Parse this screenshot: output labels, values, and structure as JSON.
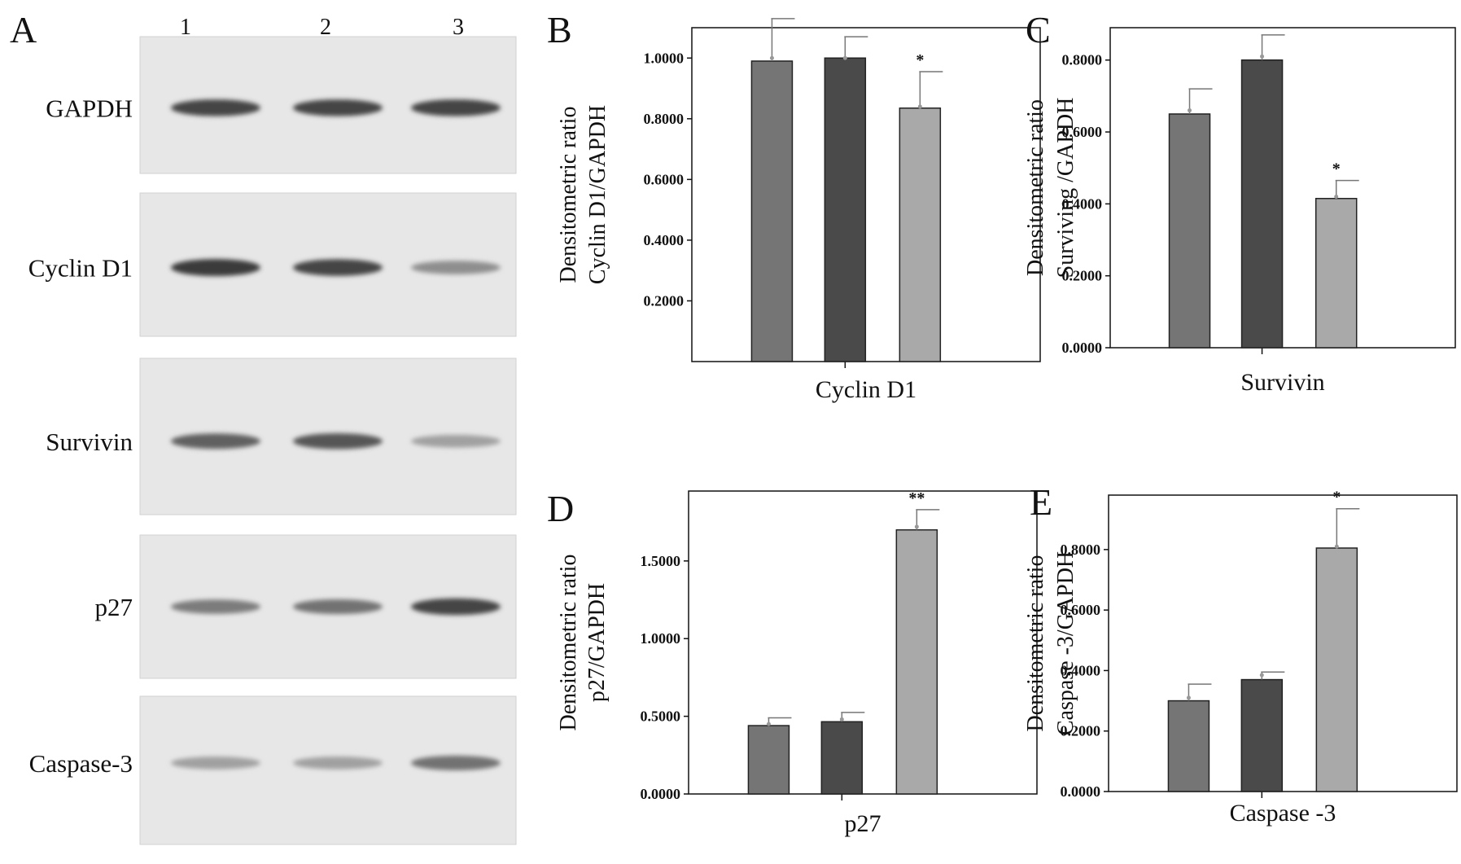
{
  "blot": {
    "letter": "A",
    "lanes": [
      "1",
      "2",
      "3"
    ],
    "rows": [
      {
        "label": "GAPDH",
        "intensity": [
          0.85,
          0.85,
          0.85
        ],
        "band_y": 0.52
      },
      {
        "label": "Cyclin D1",
        "intensity": [
          0.9,
          0.85,
          0.45
        ],
        "band_y": 0.52
      },
      {
        "label": "Survivin",
        "intensity": [
          0.7,
          0.75,
          0.35
        ],
        "band_y": 0.53
      },
      {
        "label": "p27",
        "intensity": [
          0.55,
          0.6,
          0.85
        ],
        "band_y": 0.5
      },
      {
        "label": "Caspase-3",
        "intensity": [
          0.35,
          0.35,
          0.6
        ],
        "band_y": 0.45
      }
    ]
  },
  "colors": {
    "lane1": "#757575",
    "lane2": "#4a4a4a",
    "lane3": "#a9a9a9",
    "axis": "#111111",
    "errorbar": "#777777"
  },
  "chart_data": [
    {
      "type": "bar",
      "letter": "B",
      "xlabel": "Cyclin D1",
      "ylabel": [
        "Densitometric ratio",
        "Cyclin D1/GAPDH"
      ],
      "ylim": [
        0.0,
        1.1
      ],
      "yticks": [
        {
          "v": 0.2,
          "label": "0.2000"
        },
        {
          "v": 0.4,
          "label": "0.4000"
        },
        {
          "v": 0.6,
          "label": "0.6000"
        },
        {
          "v": 0.8,
          "label": "0.8000"
        },
        {
          "v": 1.0,
          "label": "1.0000"
        }
      ],
      "values": [
        0.99,
        1.0,
        0.835
      ],
      "errors": [
        0.14,
        0.07,
        0.12
      ],
      "points": [
        1.0,
        1.0,
        0.84
      ],
      "significance": [
        "",
        "",
        "*"
      ]
    },
    {
      "type": "bar",
      "letter": "C",
      "xlabel": "Survivin",
      "ylabel": [
        "Densitometric ratio",
        "Surviving /GAPDH"
      ],
      "ylim": [
        0.0,
        0.89
      ],
      "yticks": [
        {
          "v": 0.0,
          "label": "0.0000"
        },
        {
          "v": 0.2,
          "label": "0.2000"
        },
        {
          "v": 0.4,
          "label": "0.4000"
        },
        {
          "v": 0.6,
          "label": "0.6000"
        },
        {
          "v": 0.8,
          "label": "0.8000"
        }
      ],
      "values": [
        0.65,
        0.8,
        0.415
      ],
      "errors": [
        0.07,
        0.07,
        0.05
      ],
      "points": [
        0.66,
        0.81,
        0.42
      ],
      "significance": [
        "",
        "",
        "*"
      ]
    },
    {
      "type": "bar",
      "letter": "D",
      "xlabel": "p27",
      "ylabel": [
        "Densitometric ratio",
        "p27/GAPDH"
      ],
      "ylim": [
        0.0,
        1.95
      ],
      "yticks": [
        {
          "v": 0.0,
          "label": "0.0000"
        },
        {
          "v": 0.5,
          "label": "0.5000"
        },
        {
          "v": 1.0,
          "label": "1.0000"
        },
        {
          "v": 1.5,
          "label": "1.5000"
        }
      ],
      "values": [
        0.44,
        0.465,
        1.7
      ],
      "errors": [
        0.05,
        0.06,
        0.13
      ],
      "points": [
        0.45,
        0.48,
        1.72
      ],
      "significance": [
        "",
        "",
        "**"
      ]
    },
    {
      "type": "bar",
      "letter": "E",
      "xlabel": "Caspase -3",
      "ylabel": [
        "Densitometric ratio",
        "Caspase -3/GAPDH"
      ],
      "ylim": [
        0.0,
        0.98
      ],
      "yticks": [
        {
          "v": 0.0,
          "label": "0.0000"
        },
        {
          "v": 0.2,
          "label": "0.2000"
        },
        {
          "v": 0.4,
          "label": "0.4000"
        },
        {
          "v": 0.6,
          "label": "0.6000"
        },
        {
          "v": 0.8,
          "label": "0.8000"
        }
      ],
      "values": [
        0.3,
        0.37,
        0.805
      ],
      "errors": [
        0.055,
        0.025,
        0.13
      ],
      "points": [
        0.31,
        0.385,
        0.81
      ],
      "significance": [
        "",
        "",
        "*"
      ]
    }
  ]
}
